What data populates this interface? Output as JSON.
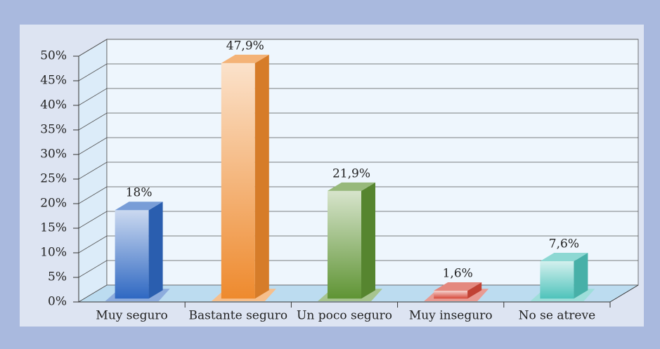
{
  "chart_data": {
    "type": "bar3d",
    "categories": [
      "Muy seguro",
      "Bastante seguro",
      "Un poco seguro",
      "Muy inseguro",
      "No se atreve"
    ],
    "values": [
      18,
      47.9,
      21.9,
      1.6,
      7.6
    ],
    "value_labels": [
      "18%",
      "47,9%",
      "21,9%",
      "1,6%",
      "7,6%"
    ],
    "colors": [
      "#2f68c2",
      "#ee8a2e",
      "#5f9434",
      "#d6493a",
      "#4fc3bb"
    ],
    "ylim": [
      0,
      50
    ],
    "yticks": [
      {
        "value": 0,
        "label": "0%"
      },
      {
        "value": 5,
        "label": "5%"
      },
      {
        "value": 10,
        "label": "10%"
      },
      {
        "value": 15,
        "label": "15%"
      },
      {
        "value": 20,
        "label": "20%"
      },
      {
        "value": 25,
        "label": "25%"
      },
      {
        "value": 30,
        "label": "30%"
      },
      {
        "value": 35,
        "label": "35%"
      },
      {
        "value": 40,
        "label": "40%"
      },
      {
        "value": 45,
        "label": "45%"
      },
      {
        "value": 50,
        "label": "50%"
      }
    ],
    "grid": true
  }
}
